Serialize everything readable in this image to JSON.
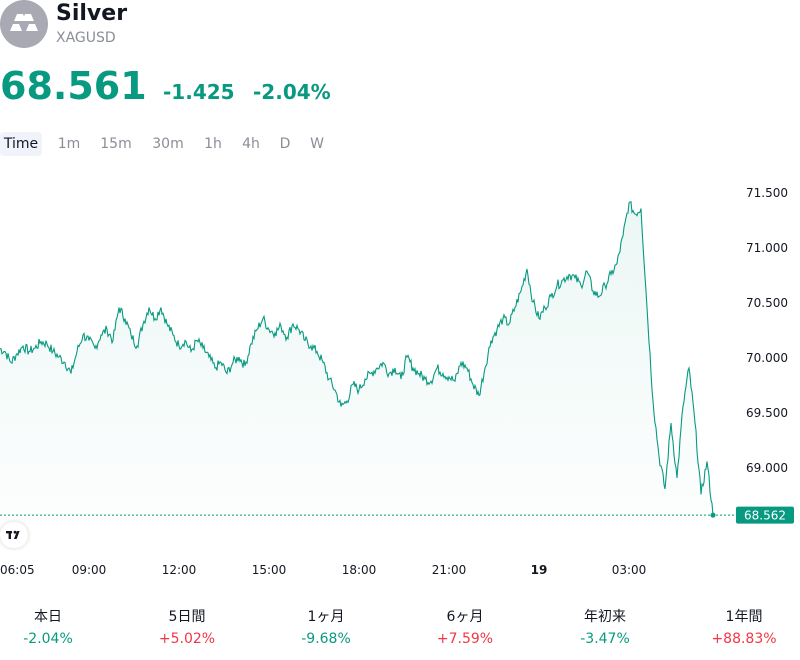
{
  "header": {
    "name": "Silver",
    "ticker": "XAGUSD",
    "price": "68.561",
    "change": "-1.425",
    "change_pct": "-2.04%",
    "logo_icon": "silver-bars-icon",
    "accent_color": "#089981"
  },
  "tabs": [
    "Time",
    "1m",
    "15m",
    "30m",
    "1h",
    "4h",
    "D",
    "W"
  ],
  "active_tab": "Time",
  "performance": [
    {
      "label": "本日",
      "value": "-2.04%",
      "color": "#089981"
    },
    {
      "label": "5日間",
      "value": "+5.02%",
      "color": "#f23645"
    },
    {
      "label": "1ヶ月",
      "value": "-9.68%",
      "color": "#089981"
    },
    {
      "label": "6ヶ月",
      "value": "+7.59%",
      "color": "#f23645"
    },
    {
      "label": "年初来",
      "value": "-3.47%",
      "color": "#089981"
    },
    {
      "label": "1年間",
      "value": "+88.83%",
      "color": "#f23645"
    }
  ],
  "chart_data": {
    "type": "area",
    "line_color": "#089981",
    "y_ticks": [
      "71.500",
      "71.000",
      "70.500",
      "70.000",
      "69.500",
      "69.000"
    ],
    "y_tick_values": [
      71.5,
      71.0,
      70.5,
      70.0,
      69.5,
      69.0
    ],
    "x_ticks": [
      "06:05",
      "09:00",
      "12:00",
      "15:00",
      "18:00",
      "21:00",
      "19",
      "03:00"
    ],
    "x_tick_hours": [
      6.0833,
      9,
      12,
      15,
      18,
      21,
      24,
      27
    ],
    "bold_x_tick": "19",
    "last_price_label": "68.562",
    "last_price": 68.562,
    "ylim": [
      68.4,
      71.9
    ],
    "xlim": [
      6.0,
      31.0
    ],
    "points": [
      [
        6.0,
        70.08
      ],
      [
        6.2,
        70.05
      ],
      [
        6.4,
        69.95
      ],
      [
        6.6,
        70.03
      ],
      [
        6.8,
        70.1
      ],
      [
        7.0,
        70.05
      ],
      [
        7.2,
        70.08
      ],
      [
        7.4,
        70.14
      ],
      [
        7.6,
        70.12
      ],
      [
        7.8,
        70.05
      ],
      [
        8.0,
        70.0
      ],
      [
        8.2,
        69.95
      ],
      [
        8.4,
        69.85
      ],
      [
        8.6,
        70.05
      ],
      [
        8.8,
        70.2
      ],
      [
        9.0,
        70.15
      ],
      [
        9.2,
        70.08
      ],
      [
        9.4,
        70.2
      ],
      [
        9.6,
        70.25
      ],
      [
        9.8,
        70.15
      ],
      [
        10.0,
        70.45
      ],
      [
        10.2,
        70.35
      ],
      [
        10.4,
        70.2
      ],
      [
        10.6,
        70.1
      ],
      [
        10.8,
        70.3
      ],
      [
        11.0,
        70.45
      ],
      [
        11.2,
        70.35
      ],
      [
        11.4,
        70.45
      ],
      [
        11.6,
        70.3
      ],
      [
        11.8,
        70.2
      ],
      [
        12.0,
        70.1
      ],
      [
        12.2,
        70.15
      ],
      [
        12.4,
        70.05
      ],
      [
        12.6,
        70.15
      ],
      [
        12.8,
        70.08
      ],
      [
        13.0,
        70.0
      ],
      [
        13.2,
        69.9
      ],
      [
        13.4,
        69.95
      ],
      [
        13.6,
        69.85
      ],
      [
        13.8,
        69.95
      ],
      [
        14.0,
        70.0
      ],
      [
        14.2,
        69.92
      ],
      [
        14.4,
        70.12
      ],
      [
        14.6,
        70.25
      ],
      [
        14.8,
        70.35
      ],
      [
        15.0,
        70.25
      ],
      [
        15.2,
        70.22
      ],
      [
        15.4,
        70.28
      ],
      [
        15.6,
        70.18
      ],
      [
        15.8,
        70.3
      ],
      [
        16.0,
        70.25
      ],
      [
        16.2,
        70.15
      ],
      [
        16.4,
        70.1
      ],
      [
        16.6,
        70.05
      ],
      [
        16.8,
        69.95
      ],
      [
        17.0,
        69.8
      ],
      [
        17.2,
        69.7
      ],
      [
        17.4,
        69.55
      ],
      [
        17.6,
        69.6
      ],
      [
        17.8,
        69.75
      ],
      [
        18.0,
        69.7
      ],
      [
        18.2,
        69.8
      ],
      [
        18.4,
        69.85
      ],
      [
        18.6,
        69.9
      ],
      [
        18.8,
        69.95
      ],
      [
        19.0,
        69.85
      ],
      [
        19.2,
        69.9
      ],
      [
        19.4,
        69.8
      ],
      [
        19.6,
        70.0
      ],
      [
        19.8,
        69.9
      ],
      [
        20.0,
        69.85
      ],
      [
        20.2,
        69.8
      ],
      [
        20.4,
        69.78
      ],
      [
        20.6,
        69.9
      ],
      [
        20.8,
        69.85
      ],
      [
        21.0,
        69.82
      ],
      [
        21.2,
        69.78
      ],
      [
        21.4,
        69.95
      ],
      [
        21.6,
        69.9
      ],
      [
        21.8,
        69.75
      ],
      [
        22.0,
        69.65
      ],
      [
        22.2,
        69.9
      ],
      [
        22.4,
        70.15
      ],
      [
        22.6,
        70.25
      ],
      [
        22.8,
        70.35
      ],
      [
        23.0,
        70.3
      ],
      [
        23.2,
        70.45
      ],
      [
        23.4,
        70.6
      ],
      [
        23.6,
        70.8
      ],
      [
        23.8,
        70.5
      ],
      [
        24.0,
        70.35
      ],
      [
        24.2,
        70.45
      ],
      [
        24.4,
        70.55
      ],
      [
        24.6,
        70.65
      ],
      [
        24.8,
        70.7
      ],
      [
        25.0,
        70.75
      ],
      [
        25.2,
        70.72
      ],
      [
        25.4,
        70.65
      ],
      [
        25.6,
        70.78
      ],
      [
        25.8,
        70.6
      ],
      [
        26.0,
        70.55
      ],
      [
        26.2,
        70.65
      ],
      [
        26.4,
        70.75
      ],
      [
        26.6,
        70.85
      ],
      [
        26.8,
        71.1
      ],
      [
        27.0,
        71.4
      ],
      [
        27.2,
        71.3
      ],
      [
        27.4,
        71.35
      ],
      [
        27.6,
        70.45
      ],
      [
        27.8,
        69.6
      ],
      [
        28.0,
        69.1
      ],
      [
        28.2,
        68.8
      ],
      [
        28.4,
        69.4
      ],
      [
        28.6,
        68.9
      ],
      [
        28.8,
        69.55
      ],
      [
        29.0,
        69.9
      ],
      [
        29.2,
        69.4
      ],
      [
        29.4,
        68.75
      ],
      [
        29.6,
        69.05
      ],
      [
        29.8,
        68.562
      ]
    ]
  }
}
